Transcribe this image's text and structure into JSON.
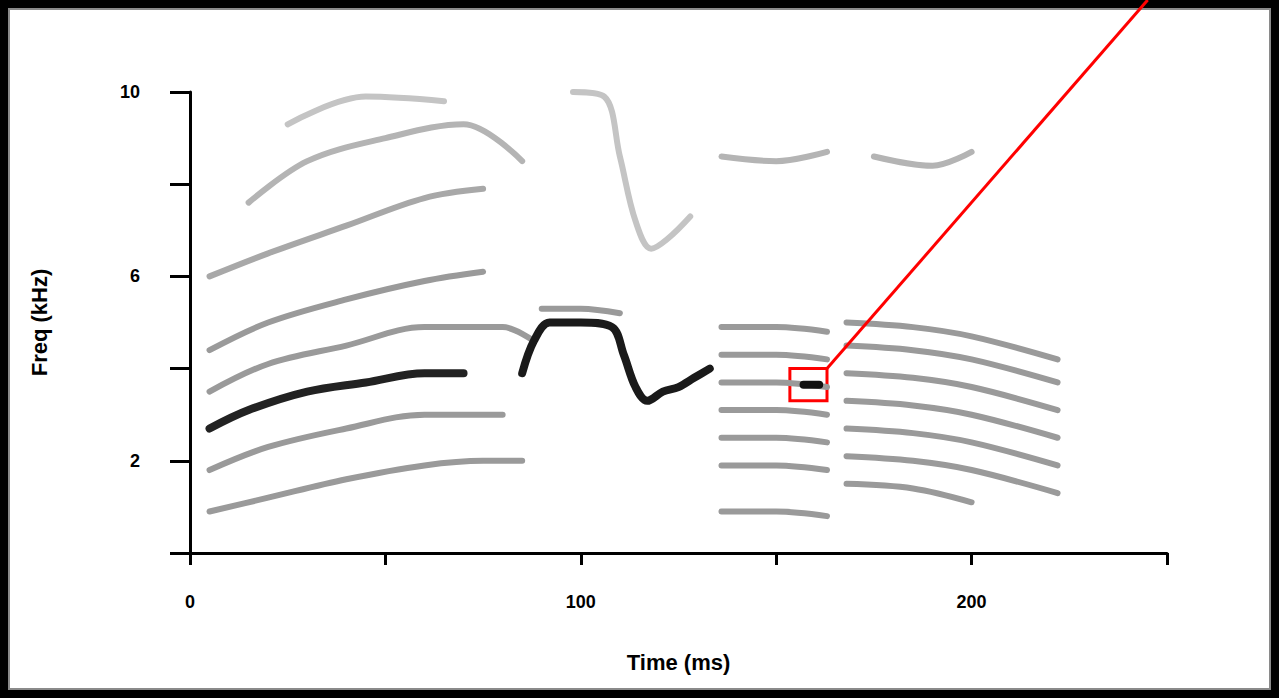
{
  "chart_data": {
    "type": "line",
    "x_label": "Time (ms)",
    "y_label": "Freq (kHz)",
    "xlim": [
      0,
      250
    ],
    "ylim": [
      0,
      10
    ],
    "xticks": [
      0,
      {
        "value": 50,
        "label": null
      },
      100,
      {
        "value": 150,
        "label": null
      },
      200,
      {
        "value": 250,
        "label": null
      }
    ],
    "yticks": [
      {
        "value": 0,
        "label": null
      },
      2,
      {
        "value": 4,
        "label": null
      },
      6,
      {
        "value": 8,
        "label": null
      },
      10
    ],
    "grid": false,
    "box": {
      "xlim": [
        153.5,
        163
      ],
      "ylim": [
        3.3,
        4.0
      ],
      "color": "#ff0000"
    },
    "series": [
      {
        "color": "#9a9a9a",
        "x": [
          5,
          20,
          40,
          60,
          75,
          85
        ],
        "values": [
          0.9,
          1.2,
          1.6,
          1.9,
          2.0,
          2.0
        ]
      },
      {
        "color": "#9a9a9a",
        "x": [
          5,
          20,
          40,
          60,
          80
        ],
        "values": [
          1.8,
          2.3,
          2.7,
          3.0,
          3.0
        ]
      },
      {
        "color": "#222222",
        "x": [
          5,
          15,
          30,
          45,
          60,
          70
        ],
        "values": [
          2.7,
          3.1,
          3.5,
          3.7,
          3.9,
          3.9
        ]
      },
      {
        "color": "#9a9a9a",
        "x": [
          5,
          20,
          40,
          60,
          80,
          88
        ],
        "values": [
          3.5,
          4.1,
          4.5,
          4.9,
          4.9,
          4.6
        ]
      },
      {
        "color": "#9a9a9a",
        "x": [
          5,
          20,
          40,
          60,
          75
        ],
        "values": [
          4.4,
          5.0,
          5.5,
          5.9,
          6.1
        ]
      },
      {
        "color": "#a8a8a8",
        "x": [
          5,
          20,
          40,
          60,
          75
        ],
        "values": [
          6.0,
          6.5,
          7.1,
          7.7,
          7.9
        ]
      },
      {
        "color": "#b4b4b4",
        "x": [
          15,
          30,
          50,
          70,
          85
        ],
        "values": [
          7.6,
          8.5,
          9.0,
          9.3,
          8.5
        ]
      },
      {
        "color": "#c4c4c4",
        "x": [
          25,
          45,
          65
        ],
        "values": [
          9.3,
          9.9,
          9.8
        ]
      },
      {
        "color": "#9a9a9a",
        "x": [
          90,
          100,
          110
        ],
        "values": [
          5.3,
          5.3,
          5.2
        ]
      },
      {
        "color": "#1a1a1a",
        "x": [
          85,
          88,
          92,
          100,
          108,
          111,
          114,
          117,
          121,
          125,
          129,
          133
        ],
        "values": [
          3.9,
          4.6,
          5.0,
          5.0,
          4.9,
          4.3,
          3.6,
          3.3,
          3.5,
          3.6,
          3.8,
          4.0
        ]
      },
      {
        "color": "#c4c4c4",
        "x": [
          98,
          106,
          110,
          114,
          118,
          122,
          128
        ],
        "values": [
          10.0,
          9.9,
          8.6,
          7.2,
          6.6,
          6.8,
          7.3
        ]
      },
      {
        "color": "#9a9a9a",
        "x": [
          136,
          150,
          163
        ],
        "values": [
          0.9,
          0.9,
          0.8
        ]
      },
      {
        "color": "#9a9a9a",
        "x": [
          136,
          150,
          163
        ],
        "values": [
          1.9,
          1.9,
          1.8
        ]
      },
      {
        "color": "#9a9a9a",
        "x": [
          136,
          150,
          163
        ],
        "values": [
          2.5,
          2.5,
          2.4
        ]
      },
      {
        "color": "#9a9a9a",
        "x": [
          136,
          150,
          163
        ],
        "values": [
          3.1,
          3.1,
          3.0
        ]
      },
      {
        "color": "#9a9a9a",
        "x": [
          136,
          150,
          163
        ],
        "values": [
          3.7,
          3.7,
          3.6
        ]
      },
      {
        "color": "#9a9a9a",
        "x": [
          136,
          150,
          163
        ],
        "values": [
          4.3,
          4.3,
          4.2
        ]
      },
      {
        "color": "#9a9a9a",
        "x": [
          136,
          150,
          163
        ],
        "values": [
          4.9,
          4.9,
          4.8
        ]
      },
      {
        "color": "#b4b4b4",
        "x": [
          136,
          150,
          163
        ],
        "values": [
          8.6,
          8.5,
          8.7
        ]
      },
      {
        "color": "#111111",
        "x": [
          157,
          161
        ],
        "values": [
          3.65,
          3.65
        ]
      },
      {
        "color": "#9a9a9a",
        "x": [
          168,
          185,
          200
        ],
        "values": [
          1.5,
          1.4,
          1.1
        ]
      },
      {
        "color": "#9a9a9a",
        "x": [
          168,
          185,
          200,
          222
        ],
        "values": [
          2.1,
          2.0,
          1.8,
          1.3
        ]
      },
      {
        "color": "#9a9a9a",
        "x": [
          168,
          185,
          200,
          222
        ],
        "values": [
          2.7,
          2.6,
          2.4,
          1.9
        ]
      },
      {
        "color": "#9a9a9a",
        "x": [
          168,
          185,
          200,
          222
        ],
        "values": [
          3.3,
          3.2,
          3.0,
          2.5
        ]
      },
      {
        "color": "#9a9a9a",
        "x": [
          168,
          185,
          200,
          222
        ],
        "values": [
          3.9,
          3.8,
          3.6,
          3.1
        ]
      },
      {
        "color": "#9a9a9a",
        "x": [
          168,
          185,
          200,
          222
        ],
        "values": [
          4.5,
          4.4,
          4.2,
          3.7
        ]
      },
      {
        "color": "#9a9a9a",
        "x": [
          168,
          185,
          200,
          222
        ],
        "values": [
          5.0,
          4.9,
          4.7,
          4.2
        ]
      },
      {
        "color": "#b4b4b4",
        "x": [
          175,
          190,
          200
        ],
        "values": [
          8.6,
          8.4,
          8.7
        ]
      }
    ]
  }
}
